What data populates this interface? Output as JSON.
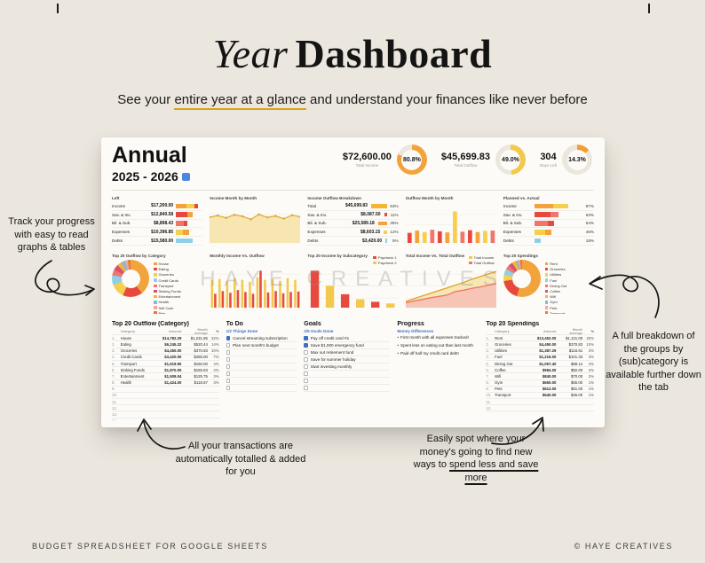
{
  "page": {
    "title_italic": "Year",
    "title_regular": "Dashboard",
    "subtitle": {
      "pre": "See your ",
      "highlight": "entire year at a glance",
      "post": " and understand your finances like never before"
    },
    "watermark": "HAYE CREATIVES",
    "footer_left": "BUDGET SPREADSHEET FOR GOOGLE SHEETS",
    "footer_right": "© HAYE CREATIVES",
    "colors": {
      "background": "#ece7de",
      "accent_yellow": "#d9a21b",
      "card": "#fcfbf7"
    }
  },
  "annotations": {
    "left": "Track your progress with easy to read graphs & tables",
    "right": "A full breakdown of the groups by (sub)category is available further down the tab",
    "bottom_left": "All your transactions are automatically totalled & added for you",
    "bottom_right": {
      "pre": "Easily spot where your money's going to find new ways to ",
      "highlight": "spend less and save more"
    }
  },
  "dashboard": {
    "title": "Annual",
    "years": "2025 - 2026",
    "stats": [
      {
        "value": "$72,600.00",
        "label": "Total Income",
        "pct": "80.8%",
        "pct_value": 80.8,
        "color": "#f2a33c"
      },
      {
        "value": "$45,699.83",
        "label": "Total Outflow",
        "pct": "49.0%",
        "pct_value": 49.0,
        "color": "#f2c94c"
      },
      {
        "value": "304",
        "label": "Days Left",
        "pct": "14.3%",
        "pct_value": 14.3,
        "color": "#f59e33"
      }
    ],
    "row1": {
      "left_table": {
        "title": "Left",
        "rows": [
          {
            "label": "Income",
            "value": "$17,200.00",
            "bar": [
              [
                "#f2a33c",
                38
              ],
              [
                "#f7cf4e",
                30
              ],
              [
                "#e8493e",
                14
              ]
            ]
          },
          {
            "label": "Sav. & Inv.",
            "value": "$12,840.58",
            "bar": [
              [
                "#e8493e",
                42
              ],
              [
                "#f2a33c",
                20
              ]
            ]
          },
          {
            "label": "Bil. & Sub.",
            "value": "$8,898.43",
            "bar": [
              [
                "#f0756a",
                30
              ],
              [
                "#e8493e",
                14
              ]
            ]
          },
          {
            "label": "Expenses",
            "value": "$10,396.85",
            "bar": [
              [
                "#f7cf4e",
                26
              ],
              [
                "#f2a33c",
                24
              ]
            ]
          },
          {
            "label": "Debts",
            "value": "$15,580.00",
            "bar": [
              [
                "#8fd0e8",
                62
              ]
            ]
          }
        ]
      },
      "income_month": {
        "type": "area",
        "title": "Income Month by Month",
        "values": [
          5.9,
          6.3,
          5.7,
          6.5,
          6.1,
          5.3,
          6.6,
          5.8,
          6.2,
          5.5,
          6.4,
          6.0
        ],
        "color": "#e0a32e",
        "fill": "#f6e3a8"
      },
      "outflow_breakdown": {
        "title": "Income Outflow Breakdown",
        "rows": [
          {
            "label": "Total",
            "value": "$45,699.83",
            "pct": "63%",
            "pct_value": 63,
            "color": "#f2b632"
          },
          {
            "label": "Sav. & Inv.",
            "value": "$8,087.50",
            "pct": "11%",
            "pct_value": 11,
            "color": "#e8493e"
          },
          {
            "label": "Bil. & Sub.",
            "value": "$25,589.18",
            "pct": "35%",
            "pct_value": 35,
            "color": "#f2a33c"
          },
          {
            "label": "Expenses",
            "value": "$8,603.15",
            "pct": "12%",
            "pct_value": 12,
            "color": "#f7cf4e"
          },
          {
            "label": "Debts",
            "value": "$3,420.00",
            "pct": "5%",
            "pct_value": 5,
            "color": "#8fd0e8"
          }
        ]
      },
      "outflow_month": {
        "type": "bar",
        "title": "Outflow Month by Month",
        "values": [
          2.7,
          3.3,
          2.9,
          3.5,
          3.1,
          2.8,
          8.4,
          3.0,
          3.4,
          2.9,
          3.2,
          3.3
        ],
        "colors": [
          "#e8493e",
          "#f2a33c",
          "#f7cf4e",
          "#f0756a",
          "#e8493e",
          "#f2a33c",
          "#f7cf4e",
          "#f0756a",
          "#e8493e",
          "#f2a33c",
          "#f7cf4e",
          "#f0756a"
        ]
      },
      "planned_actual": {
        "title": "Planned vs. Actual",
        "rows": [
          {
            "label": "Income",
            "pct": "87%",
            "bar": [
              [
                "#f2a33c",
                40
              ],
              [
                "#f7cf4e",
                30
              ]
            ]
          },
          {
            "label": "Sav. & Inv.",
            "pct": "63%",
            "bar": [
              [
                "#e8493e",
                34
              ],
              [
                "#f0756a",
                16
              ]
            ]
          },
          {
            "label": "Bil. & Sub.",
            "pct": "54%",
            "bar": [
              [
                "#f0756a",
                28
              ],
              [
                "#e8493e",
                14
              ]
            ]
          },
          {
            "label": "Expenses",
            "pct": "45%",
            "bar": [
              [
                "#f7cf4e",
                22
              ],
              [
                "#f2a33c",
                14
              ]
            ]
          },
          {
            "label": "Debts",
            "pct": "18%",
            "bar": [
              [
                "#8fd0e8",
                14
              ]
            ]
          }
        ]
      }
    },
    "row2": {
      "outflow_category": {
        "type": "donut",
        "title": "Top 20 Outflow by Category",
        "legend": [
          {
            "label": "House",
            "value": 32,
            "color": "#f2a33c"
          },
          {
            "label": "Eating",
            "value": 14,
            "color": "#e8493e"
          },
          {
            "label": "Groceries",
            "value": 10,
            "color": "#f7cf4e"
          },
          {
            "label": "Credit Cards",
            "value": 7,
            "color": "#8fd0e8"
          },
          {
            "label": "Transport",
            "value": 4,
            "color": "#f0756a"
          },
          {
            "label": "Sinking Funds",
            "value": 4,
            "color": "#d94f70"
          },
          {
            "label": "Entertainment",
            "value": 3,
            "color": "#f2b632"
          },
          {
            "label": "Health",
            "value": 3,
            "color": "#89b8d9"
          },
          {
            "label": "Self Care",
            "value": 2,
            "color": "#f4a69d"
          },
          {
            "label": "Pets",
            "value": 2,
            "color": "#e07b39"
          }
        ]
      },
      "monthly_io": {
        "type": "groupbar",
        "title": "Monthly Income Vs. Outflow",
        "series": [
          {
            "name": "Income",
            "color": "#f2c94c",
            "values": [
              6.0,
              6.2,
              5.8,
              6.4,
              6.0,
              5.6,
              6.6,
              6.0,
              6.2,
              5.8,
              6.4,
              6.0
            ]
          },
          {
            "name": "Outflow",
            "color": "#e8493e",
            "values": [
              3.0,
              3.6,
              3.2,
              3.8,
              3.4,
              3.0,
              8.0,
              3.3,
              3.6,
              3.1,
              3.4,
              3.5
            ]
          }
        ]
      },
      "income_subcat": {
        "type": "bar",
        "title": "Top 20 Income by Subcategory",
        "legend": [
          {
            "label": "Paycheck 1",
            "color": "#e8493e"
          },
          {
            "label": "Paycheck 2",
            "color": "#f2c94c"
          }
        ],
        "values": [
          4.4,
          2.6,
          1.6,
          1.0,
          0.7,
          0.5
        ],
        "colors": [
          "#e8493e",
          "#f2c94c",
          "#e8493e",
          "#f2c94c",
          "#e8493e",
          "#f2c94c"
        ]
      },
      "total_io": {
        "type": "area2",
        "title": "Total Income Vs. Total Outflow",
        "legend": [
          {
            "label": "Total Income",
            "color": "#f2c94c"
          },
          {
            "label": "Total Outflow",
            "color": "#f0756a"
          }
        ],
        "series": [
          {
            "name": "Total Income",
            "color": "#e0a32e",
            "fill": "#f6e3a8",
            "values": [
              6,
              12,
              18,
              24,
              30,
              36,
              42,
              48,
              55,
              61,
              67,
              72.6
            ]
          },
          {
            "name": "Total Outflow",
            "color": "#f0756a",
            "fill": "#f6beb5",
            "values": [
              3,
              7,
              10,
              14,
              17,
              20,
              28,
              31,
              35,
              38,
              42,
              45.7
            ]
          }
        ]
      },
      "spendings_donut": {
        "type": "donut",
        "title": "Top 20 Spendings",
        "legend": [
          {
            "label": "Rent",
            "value": 30,
            "color": "#f2a33c"
          },
          {
            "label": "Groceries",
            "value": 10,
            "color": "#e8493e"
          },
          {
            "label": "Utilities",
            "value": 3,
            "color": "#f7cf4e"
          },
          {
            "label": "Fuel",
            "value": 3,
            "color": "#8fd0e8"
          },
          {
            "label": "Dining Out",
            "value": 2,
            "color": "#f0756a"
          },
          {
            "label": "Coffee",
            "value": 2,
            "color": "#d94f70"
          },
          {
            "label": "Wifi",
            "value": 2,
            "color": "#f2b632"
          },
          {
            "label": "Gym",
            "value": 1,
            "color": "#89b8d9"
          },
          {
            "label": "Pets",
            "value": 1,
            "color": "#f4a69d"
          },
          {
            "label": "Transport",
            "value": 1,
            "color": "#e07b39"
          }
        ]
      }
    },
    "row3": {
      "outflow_table": {
        "title": "Top 20 Outflow (Category)",
        "columns": [
          "Category",
          "Amount",
          "Month Average",
          "%"
        ],
        "rows": [
          [
            "House",
            "$14,782.29",
            "$1,231.86",
            "32%"
          ],
          [
            "Eating",
            "$6,245.32",
            "$520.44",
            "14%"
          ],
          [
            "Groceries",
            "$4,450.00",
            "$370.83",
            "10%"
          ],
          [
            "Credit Cards",
            "$3,420.00",
            "$285.00",
            "7%"
          ],
          [
            "Transport",
            "$1,919.90",
            "$160.00",
            "4%"
          ],
          [
            "Sinking Funds",
            "$1,870.00",
            "$155.83",
            "4%"
          ],
          [
            "Entertainment",
            "$1,509.04",
            "$125.75",
            "3%"
          ],
          [
            "Health",
            "$1,424.00",
            "$118.67",
            "3%"
          ]
        ],
        "total_rows": 14
      },
      "todo": {
        "title": "To Do",
        "sub": "1/2 Things Done",
        "items": [
          {
            "done": true,
            "text": "Cancel streaming subscription"
          },
          {
            "done": false,
            "text": "Plan next month's budget"
          }
        ],
        "total_rows": 8
      },
      "goals": {
        "title": "Goals",
        "sub": "2/5 Goals Done",
        "items": [
          {
            "done": true,
            "text": "Pay off credit card #1"
          },
          {
            "done": true,
            "text": "Save $1,000 emergency fund"
          },
          {
            "done": false,
            "text": "Max out retirement fund"
          },
          {
            "done": false,
            "text": "Save for summer holiday"
          },
          {
            "done": false,
            "text": "Start investing monthly"
          }
        ],
        "total_rows": 8
      },
      "progress": {
        "title": "Progress",
        "sub": "Money Differences",
        "items": [
          "First month with all expenses tracked!",
          "Spent less on eating out than last month",
          "Paid off half my credit card debt!"
        ]
      },
      "spendings_table": {
        "title": "Top 20 Spendings",
        "columns": [
          "Category",
          "Amount",
          "Month Average",
          "%"
        ],
        "rows": [
          [
            "Rent",
            "$13,452.00",
            "$1,121.00",
            "30%"
          ],
          [
            "Groceries",
            "$4,450.00",
            "$370.83",
            "10%"
          ],
          [
            "Utilities",
            "$1,387.29",
            "$115.61",
            "3%"
          ],
          [
            "Fuel",
            "$1,216.00",
            "$101.33",
            "3%"
          ],
          [
            "Dining Out",
            "$1,057.40",
            "$88.12",
            "2%"
          ],
          [
            "Coffee",
            "$984.00",
            "$82.00",
            "2%"
          ],
          [
            "Wifi",
            "$840.00",
            "$70.00",
            "2%"
          ],
          [
            "Gym",
            "$660.00",
            "$55.00",
            "1%"
          ],
          [
            "Pets",
            "$612.00",
            "$51.00",
            "1%"
          ],
          [
            "Transport",
            "$540.00",
            "$45.00",
            "1%"
          ]
        ],
        "total_rows": 12
      }
    }
  }
}
